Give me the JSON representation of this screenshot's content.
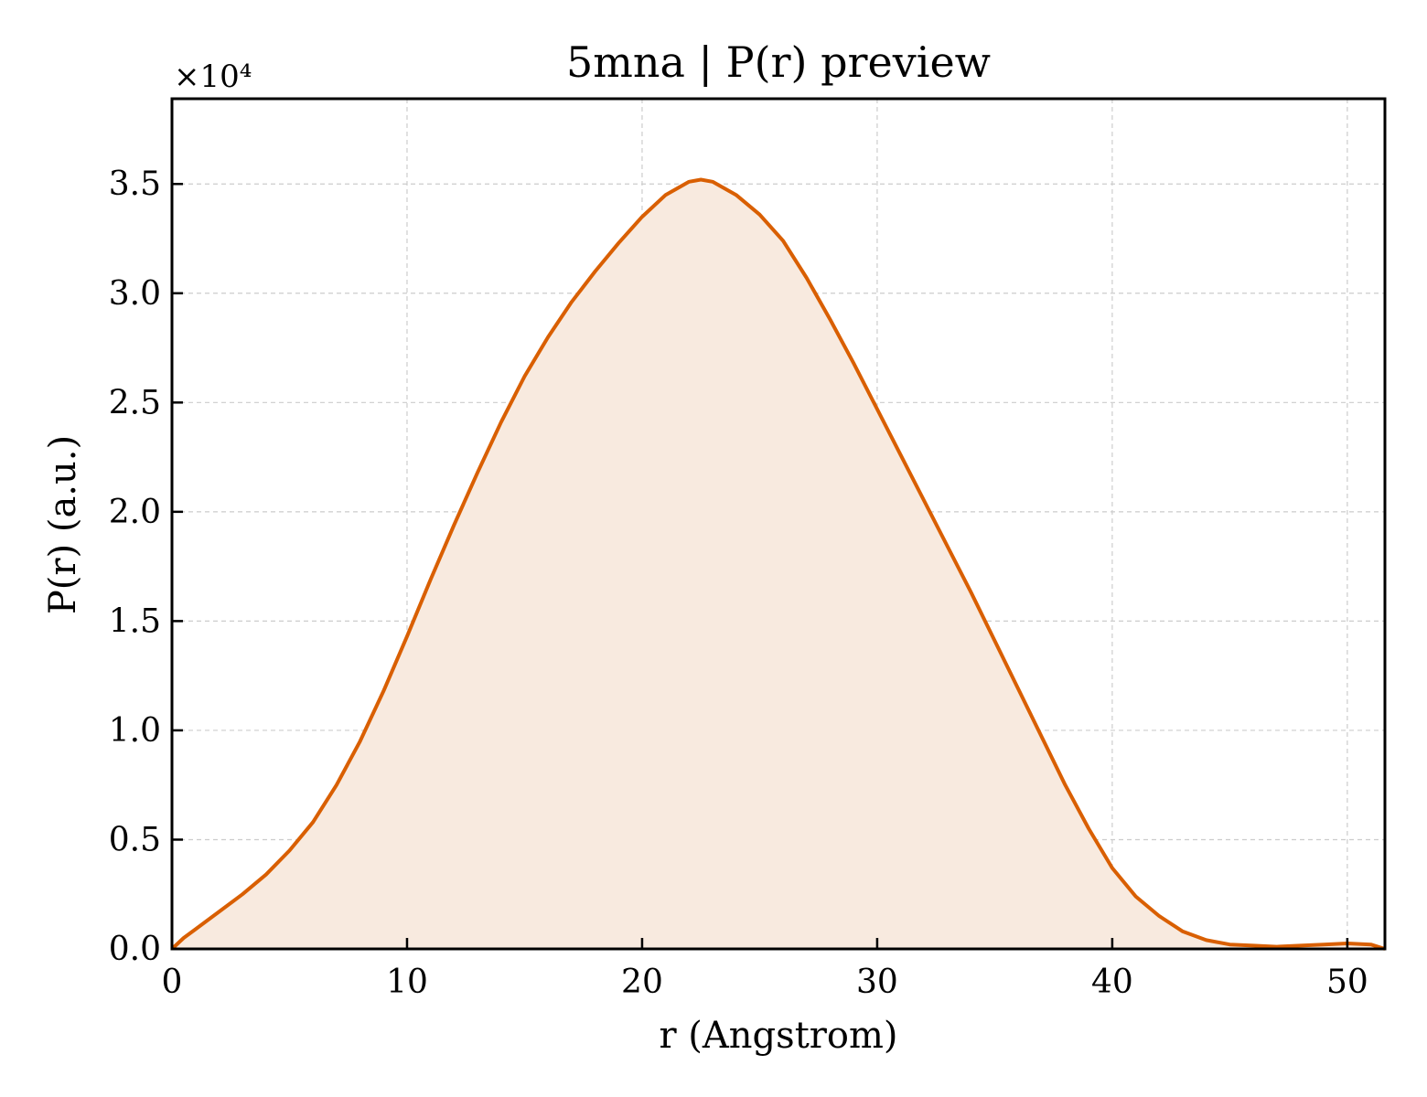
{
  "chart_data": {
    "type": "area",
    "title": "5mna | P(r) preview",
    "xlabel": "r (Angstrom)",
    "ylabel": "P(r) (a.u.)",
    "y_multiplier": "×10⁴",
    "xlim": [
      0,
      51.6
    ],
    "ylim": [
      0,
      3.89
    ],
    "xticks": [
      0,
      10,
      20,
      30,
      40,
      50
    ],
    "yticks": [
      0.0,
      0.5,
      1.0,
      1.5,
      2.0,
      2.5,
      3.0,
      3.5
    ],
    "grid": true,
    "line_color": "#d95f02",
    "fill_color": "#f8eadf",
    "series": [
      {
        "x": [
          0,
          0.5,
          1,
          2,
          3,
          4,
          5,
          6,
          7,
          8,
          9,
          10,
          11,
          12,
          13,
          14,
          15,
          16,
          17,
          18,
          19,
          20,
          21,
          22,
          22.5,
          23,
          24,
          25,
          26,
          27,
          28,
          29,
          30,
          31,
          32,
          33,
          34,
          35,
          36,
          37,
          38,
          39,
          40,
          41,
          42,
          43,
          44,
          45,
          46,
          47,
          48,
          49,
          50,
          51,
          51.6
        ],
        "y": [
          0.0,
          0.05,
          0.09,
          0.17,
          0.25,
          0.34,
          0.45,
          0.58,
          0.75,
          0.95,
          1.18,
          1.43,
          1.69,
          1.94,
          2.18,
          2.41,
          2.62,
          2.8,
          2.96,
          3.1,
          3.23,
          3.35,
          3.45,
          3.51,
          3.52,
          3.51,
          3.45,
          3.36,
          3.24,
          3.07,
          2.88,
          2.68,
          2.47,
          2.26,
          2.05,
          1.84,
          1.63,
          1.41,
          1.19,
          0.97,
          0.75,
          0.55,
          0.37,
          0.24,
          0.15,
          0.08,
          0.04,
          0.02,
          0.015,
          0.01,
          0.015,
          0.02,
          0.025,
          0.02,
          0.0
        ]
      }
    ]
  }
}
